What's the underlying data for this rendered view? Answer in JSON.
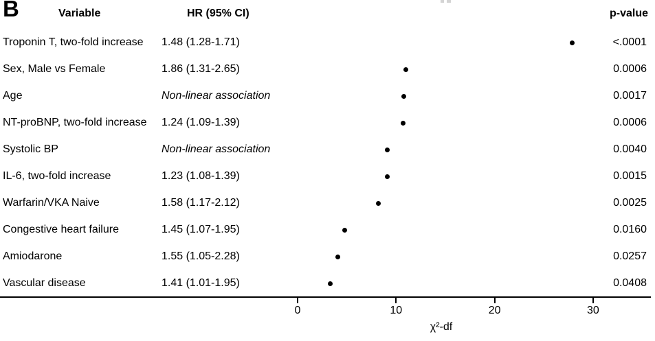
{
  "panel_label": "B",
  "header": {
    "variable": "Variable",
    "hr": "HR (95% CI)",
    "pvalue": "p-value"
  },
  "rows": [
    {
      "variable": "Troponin T, two-fold increase",
      "hr": "1.48 (1.28-1.71)",
      "hr_italic": false,
      "chi2_df": 27.9,
      "pvalue": "<.0001"
    },
    {
      "variable": "Sex, Male vs Female",
      "hr": "1.86 (1.31-2.65)",
      "hr_italic": false,
      "chi2_df": 11.0,
      "pvalue": "0.0006"
    },
    {
      "variable": "Age",
      "hr": "Non-linear association",
      "hr_italic": true,
      "chi2_df": 10.8,
      "pvalue": "0.0017"
    },
    {
      "variable": "NT-proBNP, two-fold increase",
      "hr": "1.24 (1.09-1.39)",
      "hr_italic": false,
      "chi2_df": 10.7,
      "pvalue": "0.0006"
    },
    {
      "variable": "Systolic BP",
      "hr": "Non-linear association",
      "hr_italic": true,
      "chi2_df": 9.1,
      "pvalue": "0.0040"
    },
    {
      "variable": "IL-6, two-fold increase",
      "hr": "1.23 (1.08-1.39)",
      "hr_italic": false,
      "chi2_df": 9.1,
      "pvalue": "0.0015"
    },
    {
      "variable": "Warfarin/VKA Naive",
      "hr": "1.58 (1.17-2.12)",
      "hr_italic": false,
      "chi2_df": 8.2,
      "pvalue": "0.0025"
    },
    {
      "variable": "Congestive heart failure",
      "hr": "1.45 (1.07-1.95)",
      "hr_italic": false,
      "chi2_df": 4.8,
      "pvalue": "0.0160"
    },
    {
      "variable": "Amiodarone",
      "hr": "1.55 (1.05-2.28)",
      "hr_italic": false,
      "chi2_df": 4.1,
      "pvalue": "0.0257"
    },
    {
      "variable": "Vascular disease",
      "hr": "1.41 (1.01-1.95)",
      "hr_italic": false,
      "chi2_df": 3.3,
      "pvalue": "0.0408"
    }
  ],
  "axis": {
    "label": "χ²-df",
    "ticks": [
      0,
      10,
      20,
      30
    ]
  },
  "colors": {
    "text": "#000000",
    "dot": "#000000",
    "axis": "#000000",
    "background": "#ffffff"
  },
  "chart_data": {
    "type": "scatter",
    "title": "",
    "xlabel": "χ²-df",
    "ylabel": "",
    "xlim": [
      0,
      36
    ],
    "x_ticks": [
      0,
      10,
      20,
      30
    ],
    "grid": false,
    "legend": "none",
    "categories": [
      "Troponin T, two-fold increase",
      "Sex, Male vs Female",
      "Age",
      "NT-proBNP, two-fold increase",
      "Systolic BP",
      "IL-6, two-fold increase",
      "Warfarin/VKA Naive",
      "Congestive heart failure",
      "Amiodarone",
      "Vascular disease"
    ],
    "series": [
      {
        "name": "χ²-df",
        "values": [
          27.9,
          11.0,
          10.8,
          10.7,
          9.1,
          9.1,
          8.2,
          4.8,
          4.1,
          3.3
        ]
      }
    ],
    "hr_95ci": [
      "1.48 (1.28-1.71)",
      "1.86 (1.31-2.65)",
      "Non-linear association",
      "1.24 (1.09-1.39)",
      "Non-linear association",
      "1.23 (1.08-1.39)",
      "1.58 (1.17-2.12)",
      "1.45 (1.07-1.95)",
      "1.55 (1.05-2.28)",
      "1.41 (1.01-1.95)"
    ],
    "p_values": [
      "<.0001",
      "0.0006",
      "0.0017",
      "0.0006",
      "0.0040",
      "0.0015",
      "0.0025",
      "0.0160",
      "0.0257",
      "0.0408"
    ]
  }
}
